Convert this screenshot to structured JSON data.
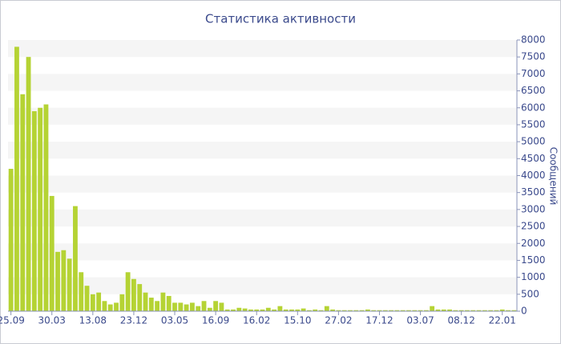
{
  "chart_data": {
    "type": "bar",
    "title": "Статистика активности",
    "y_label": "Сообщений",
    "categories": [
      "25.09",
      null,
      null,
      null,
      null,
      null,
      null,
      "30.03",
      null,
      null,
      null,
      null,
      null,
      null,
      "13.08",
      null,
      null,
      null,
      null,
      null,
      null,
      "23.12",
      null,
      null,
      null,
      null,
      null,
      null,
      "03.05",
      null,
      null,
      null,
      null,
      null,
      null,
      "16.09",
      null,
      null,
      null,
      null,
      null,
      null,
      "16.02",
      null,
      null,
      null,
      null,
      null,
      null,
      "15.10",
      null,
      null,
      null,
      null,
      null,
      null,
      "27.02",
      null,
      null,
      null,
      null,
      null,
      null,
      "17.12",
      null,
      null,
      null,
      null,
      null,
      null,
      "03.07",
      null,
      null,
      null,
      null,
      null,
      null,
      "08.12",
      null,
      null,
      null,
      null,
      null,
      null,
      "22.01",
      null,
      null
    ],
    "values": [
      4200,
      7800,
      6400,
      7500,
      5900,
      6000,
      6100,
      3400,
      1750,
      1800,
      1550,
      3100,
      1150,
      750,
      500,
      550,
      300,
      200,
      250,
      500,
      1150,
      950,
      800,
      550,
      400,
      300,
      550,
      450,
      250,
      250,
      200,
      250,
      150,
      300,
      100,
      300,
      250,
      50,
      50,
      100,
      80,
      50,
      50,
      50,
      100,
      50,
      150,
      50,
      50,
      50,
      80,
      30,
      50,
      30,
      150,
      50,
      30,
      30,
      30,
      30,
      30,
      50,
      30,
      30,
      30,
      30,
      30,
      30,
      30,
      30,
      30,
      30,
      150,
      50,
      50,
      50,
      30,
      30,
      30,
      30,
      30,
      30,
      30,
      30,
      50,
      30,
      30
    ],
    "color": "#b5d334",
    "ylim": [
      0,
      8000
    ],
    "yticks": [
      0,
      500,
      1000,
      1500,
      2000,
      2500,
      3000,
      3500,
      4000,
      4500,
      5000,
      5500,
      6000,
      6500,
      7000,
      7500,
      8000
    ],
    "grid": true
  }
}
